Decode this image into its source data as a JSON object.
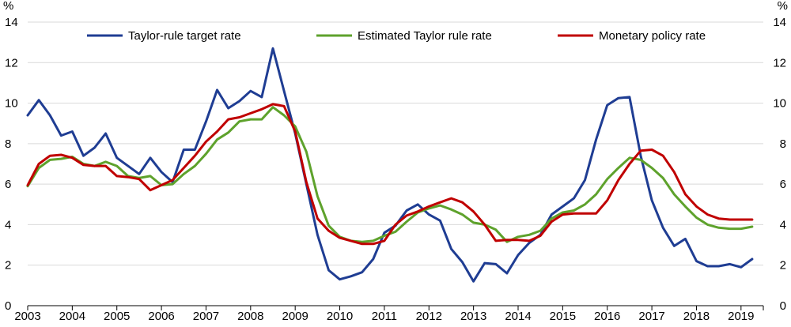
{
  "chart_data": {
    "type": "line",
    "title": "",
    "xlabel": "",
    "ylabel": "",
    "y_unit_left": "%",
    "y_unit_right": "%",
    "ylim": [
      0,
      14
    ],
    "y_ticks": [
      0,
      2,
      4,
      6,
      8,
      10,
      12,
      14
    ],
    "x_ticks": [
      "2003",
      "2004",
      "2005",
      "2006",
      "2007",
      "2008",
      "2009",
      "2010",
      "2011",
      "2012",
      "2013",
      "2014",
      "2015",
      "2016",
      "2017",
      "2018",
      "2019"
    ],
    "x_start": 2003.0,
    "x_step": 0.25,
    "grid": "horizontal",
    "legend_position": "top",
    "series": [
      {
        "name": "Taylor-rule target rate",
        "color": "#1f3d93",
        "values": [
          9.4,
          10.15,
          9.4,
          8.4,
          8.6,
          7.4,
          7.8,
          8.5,
          7.3,
          6.9,
          6.5,
          7.3,
          6.6,
          6.1,
          7.7,
          7.7,
          9.1,
          10.65,
          9.75,
          10.1,
          10.6,
          10.3,
          12.7,
          10.6,
          8.5,
          6.0,
          3.5,
          1.75,
          1.3,
          1.45,
          1.65,
          2.3,
          3.6,
          3.95,
          4.7,
          5.0,
          4.5,
          4.2,
          2.8,
          2.15,
          1.2,
          2.1,
          2.05,
          1.6,
          2.5,
          3.1,
          3.5,
          4.5,
          4.9,
          5.3,
          6.2,
          8.2,
          9.9,
          10.25,
          10.3,
          7.4,
          5.2,
          3.85,
          2.95,
          3.3,
          2.2,
          1.95,
          1.95,
          2.05,
          1.9,
          2.3
        ]
      },
      {
        "name": "Estimated Taylor rule rate",
        "color": "#5ea22c",
        "values": [
          5.9,
          6.8,
          7.2,
          7.25,
          7.35,
          7.0,
          6.9,
          7.1,
          6.9,
          6.4,
          6.3,
          6.4,
          5.95,
          6.0,
          6.5,
          6.9,
          7.5,
          8.2,
          8.55,
          9.1,
          9.2,
          9.2,
          9.8,
          9.4,
          8.85,
          7.6,
          5.4,
          3.95,
          3.4,
          3.2,
          3.15,
          3.2,
          3.45,
          3.65,
          4.15,
          4.6,
          4.8,
          4.95,
          4.75,
          4.5,
          4.1,
          4.0,
          3.75,
          3.15,
          3.4,
          3.5,
          3.7,
          4.3,
          4.6,
          4.7,
          5.0,
          5.5,
          6.25,
          6.8,
          7.3,
          7.2,
          6.8,
          6.3,
          5.5,
          4.9,
          4.35,
          4.0,
          3.85,
          3.8,
          3.8,
          3.9
        ]
      },
      {
        "name": "Monetary policy rate",
        "color": "#c00000",
        "values": [
          5.95,
          7.0,
          7.4,
          7.45,
          7.3,
          6.95,
          6.9,
          6.9,
          6.4,
          6.35,
          6.25,
          5.7,
          5.95,
          6.2,
          6.8,
          7.4,
          8.1,
          8.6,
          9.2,
          9.3,
          9.5,
          9.7,
          9.95,
          9.85,
          8.6,
          6.1,
          4.3,
          3.7,
          3.35,
          3.2,
          3.05,
          3.05,
          3.2,
          4.0,
          4.45,
          4.65,
          4.9,
          5.1,
          5.3,
          5.1,
          4.65,
          4.0,
          3.2,
          3.25,
          3.25,
          3.2,
          3.45,
          4.15,
          4.5,
          4.55,
          4.55,
          4.55,
          5.2,
          6.2,
          7.0,
          7.65,
          7.7,
          7.4,
          6.6,
          5.5,
          4.9,
          4.5,
          4.3,
          4.25,
          4.25,
          4.25
        ]
      }
    ]
  }
}
